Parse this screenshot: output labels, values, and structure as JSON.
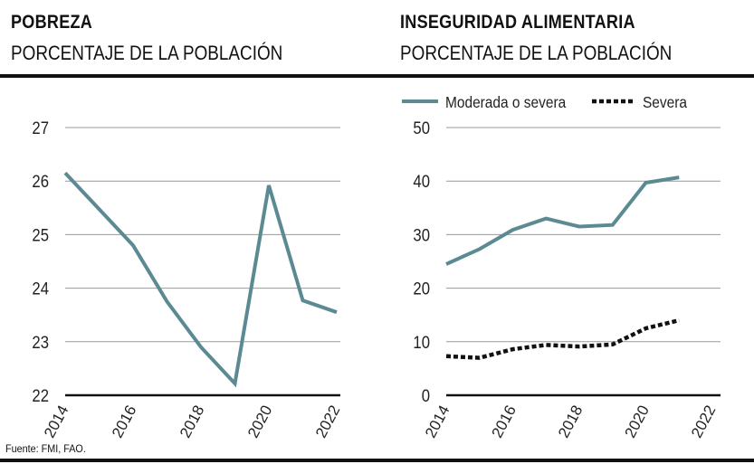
{
  "colors": {
    "teal": "#5b8a93",
    "black": "#111111",
    "grid": "#999999",
    "text": "#222222"
  },
  "source": "Fuente: FMI, FAO.",
  "chart_data": [
    {
      "id": "pobreza",
      "type": "line",
      "title": "POBREZA",
      "subtitle": "PORCENTAJE DE LA POBLACIÓN",
      "x_ticks": [
        "2014",
        "2016",
        "2018",
        "2020",
        "2022"
      ],
      "xlim": [
        2014,
        2022
      ],
      "ylim": [
        22,
        27
      ],
      "y_ticks": [
        "22",
        "23",
        "24",
        "25",
        "26",
        "27"
      ],
      "grid": true,
      "series": [
        {
          "name": "Pobreza",
          "color": "#5b8a93",
          "style": "solid",
          "x": [
            2014,
            2016,
            2017,
            2018,
            2019,
            2020,
            2021,
            2022
          ],
          "values": [
            26.15,
            24.8,
            23.75,
            22.9,
            22.22,
            25.92,
            23.77,
            23.55
          ]
        }
      ]
    },
    {
      "id": "inseguridad",
      "type": "line",
      "title": "INSEGURIDAD ALIMENTARIA",
      "subtitle": "PORCENTAJE DE LA POBLACIÓN",
      "x_ticks": [
        "2014",
        "2016",
        "2018",
        "2020",
        "2022"
      ],
      "xlim": [
        2014,
        2022
      ],
      "ylim": [
        0,
        50
      ],
      "y_ticks": [
        "0",
        "10",
        "20",
        "30",
        "40",
        "50"
      ],
      "grid": true,
      "legend": "top",
      "series": [
        {
          "name": "Moderada o severa",
          "color": "#5b8a93",
          "style": "solid",
          "x": [
            2014,
            2015,
            2016,
            2017,
            2018,
            2019,
            2020,
            2021
          ],
          "values": [
            24.5,
            27.3,
            30.9,
            33.0,
            31.5,
            31.8,
            39.7,
            40.7
          ]
        },
        {
          "name": "Severa",
          "color": "#111111",
          "style": "dotted",
          "x": [
            2014,
            2015,
            2016,
            2017,
            2018,
            2019,
            2020,
            2021
          ],
          "values": [
            7.3,
            7.0,
            8.6,
            9.4,
            9.1,
            9.5,
            12.5,
            14.0
          ]
        }
      ]
    }
  ]
}
